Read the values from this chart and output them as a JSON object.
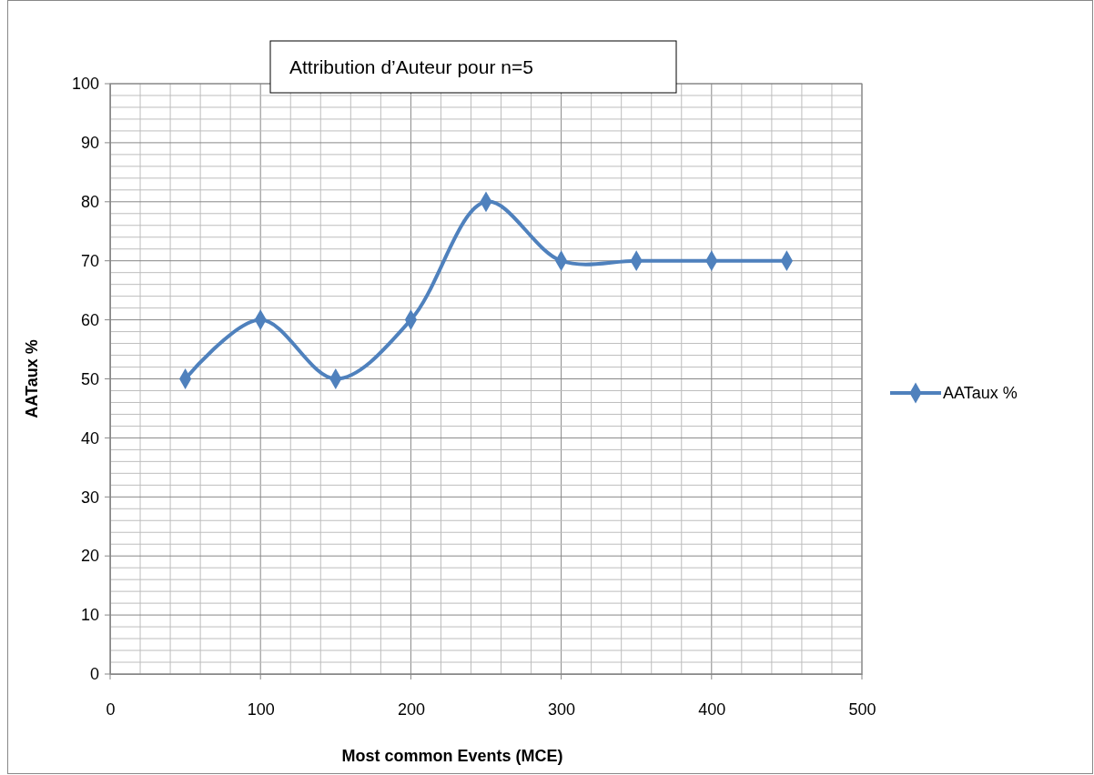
{
  "chart_data": {
    "type": "line",
    "title": "Attribution d’Auteur pour n=5",
    "xlabel": "Most common Events (MCE)",
    "ylabel": "AATaux %",
    "x": [
      50,
      100,
      150,
      200,
      250,
      300,
      350,
      400,
      450
    ],
    "series": [
      {
        "name": "AATaux %",
        "color": "#4f81bd",
        "values": [
          50,
          60,
          50,
          60,
          80,
          70,
          70,
          70,
          70
        ]
      }
    ],
    "xlim": [
      0,
      500
    ],
    "ylim": [
      0,
      100
    ],
    "xticks": [
      0,
      {
        "value": 20,
        "label": null
      },
      {
        "value": 40,
        "label": null
      },
      {
        "value": 60,
        "label": null
      },
      {
        "value": 80,
        "label": null
      },
      100,
      {
        "value": 120,
        "label": null
      },
      {
        "value": 140,
        "label": null
      },
      {
        "value": 160,
        "label": null
      },
      {
        "value": 180,
        "label": null
      },
      200,
      {
        "value": 220,
        "label": null
      },
      {
        "value": 240,
        "label": null
      },
      {
        "value": 260,
        "label": null
      },
      {
        "value": 280,
        "label": null
      },
      300,
      {
        "value": 320,
        "label": null
      },
      {
        "value": 340,
        "label": null
      },
      {
        "value": 360,
        "label": null
      },
      {
        "value": 380,
        "label": null
      },
      400,
      {
        "value": 420,
        "label": null
      },
      {
        "value": 440,
        "label": null
      },
      {
        "value": 460,
        "label": null
      },
      {
        "value": 480,
        "label": null
      },
      500
    ],
    "yticks": [
      0,
      {
        "value": 2,
        "label": null
      },
      {
        "value": 4,
        "label": null
      },
      {
        "value": 6,
        "label": null
      },
      {
        "value": 8,
        "label": null
      },
      10,
      {
        "value": 12,
        "label": null
      },
      {
        "value": 14,
        "label": null
      },
      {
        "value": 16,
        "label": null
      },
      {
        "value": 18,
        "label": null
      },
      20,
      {
        "value": 22,
        "label": null
      },
      {
        "value": 24,
        "label": null
      },
      {
        "value": 26,
        "label": null
      },
      {
        "value": 28,
        "label": null
      },
      30,
      {
        "value": 32,
        "label": null
      },
      {
        "value": 34,
        "label": null
      },
      {
        "value": 36,
        "label": null
      },
      {
        "value": 38,
        "label": null
      },
      40,
      {
        "value": 42,
        "label": null
      },
      {
        "value": 44,
        "label": null
      },
      {
        "value": 46,
        "label": null
      },
      {
        "value": 48,
        "label": null
      },
      50,
      {
        "value": 52,
        "label": null
      },
      {
        "value": 54,
        "label": null
      },
      {
        "value": 56,
        "label": null
      },
      {
        "value": 58,
        "label": null
      },
      60,
      {
        "value": 62,
        "label": null
      },
      {
        "value": 64,
        "label": null
      },
      {
        "value": 66,
        "label": null
      },
      {
        "value": 68,
        "label": null
      },
      70,
      {
        "value": 72,
        "label": null
      },
      {
        "value": 74,
        "label": null
      },
      {
        "value": 76,
        "label": null
      },
      {
        "value": 78,
        "label": null
      },
      80,
      {
        "value": 82,
        "label": null
      },
      {
        "value": 84,
        "label": null
      },
      {
        "value": 86,
        "label": null
      },
      {
        "value": 88,
        "label": null
      },
      90,
      {
        "value": 92,
        "label": null
      },
      {
        "value": 94,
        "label": null
      },
      {
        "value": 96,
        "label": null
      },
      {
        "value": 98,
        "label": null
      },
      100
    ],
    "grid": true,
    "legend": "right",
    "marker": "diamond",
    "line_style": "solid"
  }
}
